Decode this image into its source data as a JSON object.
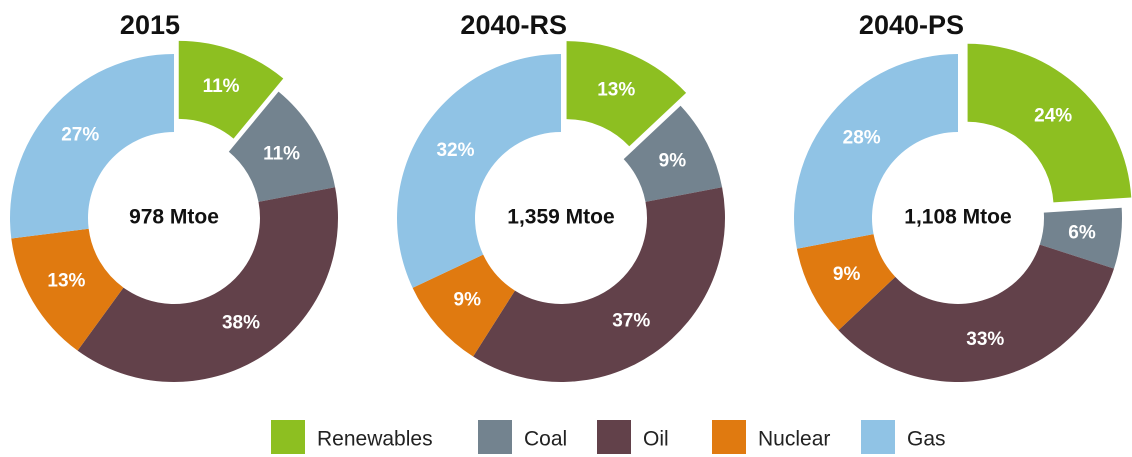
{
  "chart_data": [
    {
      "type": "pie",
      "title": "2015",
      "center_label": "978 Mtoe",
      "categories": [
        "Renewables",
        "Coal",
        "Oil",
        "Nuclear",
        "Gas"
      ],
      "colors": [
        "#8dbf21",
        "#73838f",
        "#62414a",
        "#e07a10",
        "#90c3e5"
      ],
      "values": [
        11,
        11,
        38,
        13,
        27
      ],
      "value_labels": [
        "11%",
        "11%",
        "38%",
        "13%",
        "27%"
      ],
      "explode": "Renewables"
    },
    {
      "type": "pie",
      "title": "2040-RS",
      "center_label": "1,359 Mtoe",
      "categories": [
        "Renewables",
        "Coal",
        "Oil",
        "Nuclear",
        "Gas"
      ],
      "colors": [
        "#8dbf21",
        "#73838f",
        "#62414a",
        "#e07a10",
        "#90c3e5"
      ],
      "values": [
        13,
        9,
        37,
        9,
        32
      ],
      "value_labels": [
        "13%",
        "9%",
        "37%",
        "9%",
        "32%"
      ],
      "explode": "Renewables"
    },
    {
      "type": "pie",
      "title": "2040-PS",
      "center_label": "1,108 Mtoe",
      "categories": [
        "Renewables",
        "Coal",
        "Oil",
        "Nuclear",
        "Gas"
      ],
      "colors": [
        "#8dbf21",
        "#73838f",
        "#62414a",
        "#e07a10",
        "#90c3e5"
      ],
      "values": [
        24,
        6,
        33,
        9,
        28
      ],
      "value_labels": [
        "24%",
        "6%",
        "33%",
        "9%",
        "28%"
      ],
      "explode": "Renewables"
    }
  ]
}
